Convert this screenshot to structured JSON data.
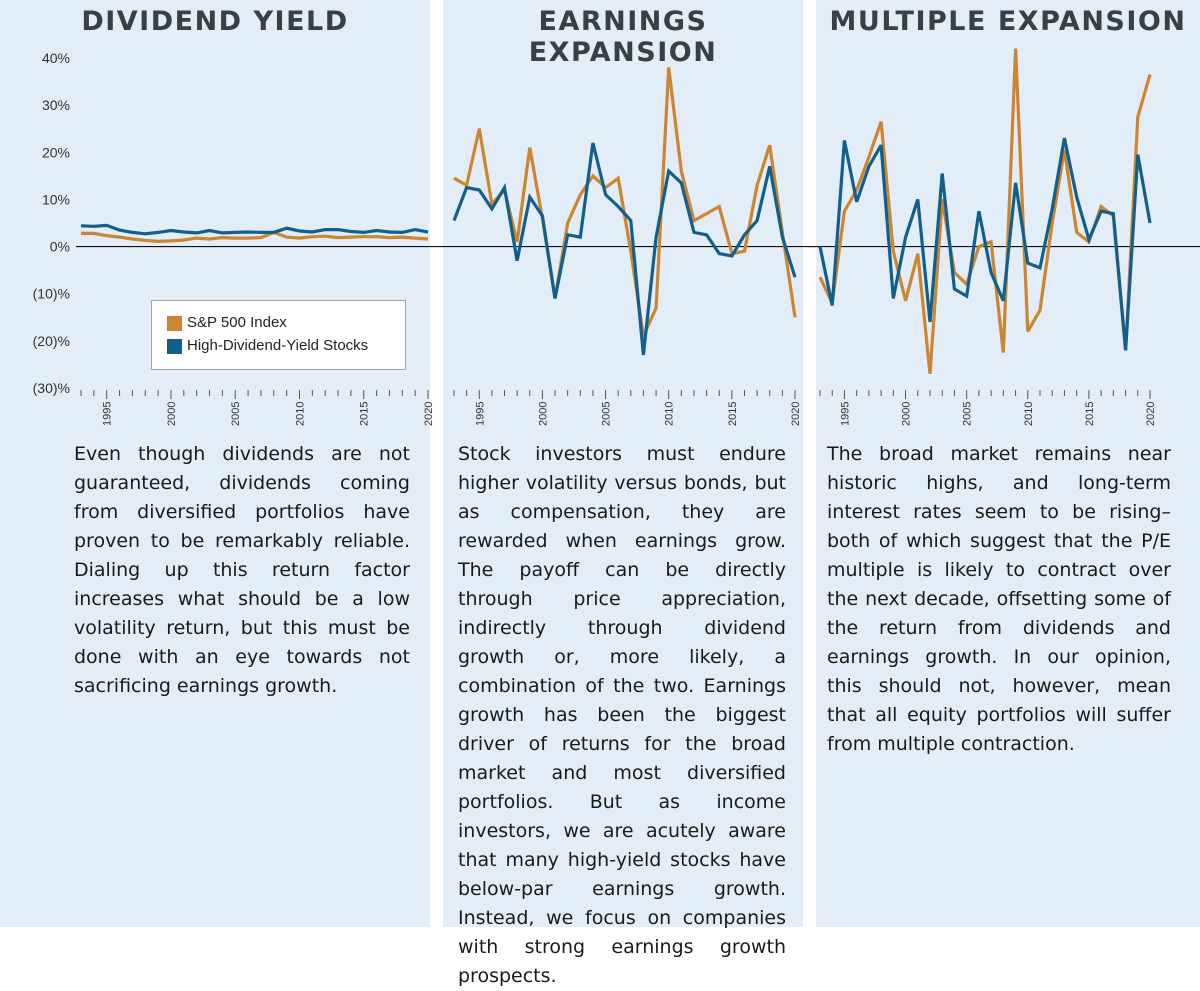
{
  "colors": {
    "panel_background": "#e2edf7",
    "sp500": "#cc8531",
    "high_dividend": "#135f8c",
    "zero_line": "#111111"
  },
  "panels": [
    {
      "title": "DIVIDEND YIELD",
      "text": "Even though dividends are not guaranteed, dividends coming from diversified portfolios have proven to be remarkably reliable.  Dialing up this return factor increases what should be a low volatility return, but this must be done with an eye towards not sacrificing earnings growth."
    },
    {
      "title": "EARNINGS EXPANSION",
      "text": "Stock investors must endure higher volatility versus bonds, but as compensation, they are rewarded when earnings grow. The payoff can be directly through price appreciation, indirectly through dividend growth or, more likely, a combination of the two. Earnings growth has been the biggest driver of returns for the broad market and most diversified portfolios. But as income investors, we are acutely aware that many high-yield stocks have below-par earnings growth. Instead, we focus on companies with strong earnings growth prospects."
    },
    {
      "title": "MULTIPLE EXPANSION",
      "text": "The broad market remains near historic highs, and long-term interest rates seem to be rising– both of which suggest that the P/E multiple is likely to contract over the next decade, offsetting some of the return from dividends and earnings growth.  In our opinion, this should not, however, mean that all equity portfolios will suffer from multiple contraction."
    }
  ],
  "legend": {
    "items": [
      "S&P 500 Index",
      "High-Dividend-Yield Stocks"
    ]
  },
  "chart_data": [
    {
      "type": "line",
      "title": "DIVIDEND YIELD",
      "x": [
        1993,
        1994,
        1995,
        1996,
        1997,
        1998,
        1999,
        2000,
        2001,
        2002,
        2003,
        2004,
        2005,
        2006,
        2007,
        2008,
        2009,
        2010,
        2011,
        2012,
        2013,
        2014,
        2015,
        2016,
        2017,
        2018,
        2019,
        2020
      ],
      "ylim": [
        -30,
        40
      ],
      "yticks": [
        -30,
        -20,
        -10,
        0,
        10,
        20,
        30,
        40
      ],
      "ytick_labels": [
        "(30)%",
        "(20)%",
        "(10)%",
        "0%",
        "10%",
        "20%",
        "30%",
        "40%"
      ],
      "xtick_labels": [
        "1995",
        "2000",
        "2005",
        "2010",
        "2015",
        "2020"
      ],
      "legend_position": "lower-right",
      "series": [
        {
          "name": "S&P 500 Index",
          "values": [
            2.8,
            2.8,
            2.3,
            2.0,
            1.6,
            1.3,
            1.1,
            1.2,
            1.4,
            1.8,
            1.6,
            1.9,
            1.8,
            1.8,
            1.9,
            3.0,
            2.0,
            1.8,
            2.1,
            2.2,
            1.9,
            2.0,
            2.1,
            2.1,
            1.9,
            2.0,
            1.8,
            1.6
          ]
        },
        {
          "name": "High-Dividend-Yield Stocks",
          "values": [
            4.4,
            4.3,
            4.5,
            3.5,
            3.0,
            2.7,
            3.0,
            3.4,
            3.1,
            2.9,
            3.4,
            2.9,
            3.0,
            3.1,
            3.0,
            3.0,
            3.9,
            3.3,
            3.1,
            3.6,
            3.6,
            3.2,
            3.0,
            3.4,
            3.1,
            3.0,
            3.6,
            3.1
          ]
        }
      ]
    },
    {
      "type": "line",
      "title": "EARNINGS EXPANSION",
      "x": [
        1993,
        1994,
        1995,
        1996,
        1997,
        1998,
        1999,
        2000,
        2001,
        2002,
        2003,
        2004,
        2005,
        2006,
        2007,
        2008,
        2009,
        2010,
        2011,
        2012,
        2013,
        2014,
        2015,
        2016,
        2017,
        2018,
        2019,
        2020
      ],
      "ylim": [
        -30,
        40
      ],
      "xtick_labels": [
        "1995",
        "2000",
        "2005",
        "2010",
        "2015",
        "2020"
      ],
      "series": [
        {
          "name": "S&P 500 Index",
          "values": [
            14.5,
            13,
            25,
            9,
            12,
            1,
            21,
            6,
            -11,
            5,
            11,
            15,
            12.5,
            14.5,
            -1,
            -19,
            -13,
            38,
            16,
            5.5,
            7,
            8.5,
            -1.5,
            -1,
            13,
            21.5,
            3,
            -15
          ]
        },
        {
          "name": "High-Dividend-Yield Stocks",
          "values": [
            5.5,
            12.5,
            12,
            8,
            12.5,
            -3,
            10.5,
            6.5,
            -11,
            2.5,
            2,
            22,
            11,
            8.5,
            5.5,
            -23,
            2,
            16,
            13.5,
            3,
            2.5,
            -1.5,
            -2,
            2.5,
            5.5,
            17,
            2,
            -6.5
          ]
        }
      ]
    },
    {
      "type": "line",
      "title": "MULTIPLE EXPANSION",
      "x": [
        1993,
        1994,
        1995,
        1996,
        1997,
        1998,
        1999,
        2000,
        2001,
        2002,
        2003,
        2004,
        2005,
        2006,
        2007,
        2008,
        2009,
        2010,
        2011,
        2012,
        2013,
        2014,
        2015,
        2016,
        2017,
        2018,
        2019,
        2020
      ],
      "ylim": [
        -30,
        40
      ],
      "xtick_labels": [
        "1995",
        "2000",
        "2005",
        "2010",
        "2015",
        "2020"
      ],
      "series": [
        {
          "name": "S&P 500 Index",
          "values": [
            -6.5,
            -12,
            7.5,
            12,
            19,
            26.5,
            -1,
            -11.5,
            -1.5,
            -27,
            10,
            -5.5,
            -8,
            0,
            1,
            -22.5,
            42,
            -18,
            -13.5,
            5,
            20.5,
            3,
            1,
            8.5,
            6.5,
            -22,
            27.5,
            36.5
          ]
        },
        {
          "name": "High-Dividend-Yield Stocks",
          "values": [
            0,
            -12.5,
            22.5,
            9.5,
            17,
            21.5,
            -11,
            2,
            10,
            -16,
            15.5,
            -9,
            -10.5,
            7.5,
            -5.5,
            -11.5,
            13.5,
            -3.5,
            -4.5,
            8,
            23,
            10.5,
            1.5,
            7.5,
            7,
            -22,
            19.5,
            5
          ]
        }
      ]
    }
  ]
}
